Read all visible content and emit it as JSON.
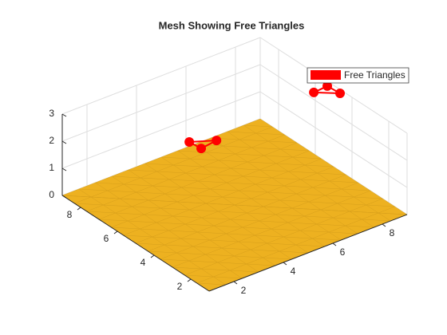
{
  "chart_data": {
    "type": "mesh3d",
    "title": "Mesh Showing Free Triangles",
    "xlim": [
      1,
      9
    ],
    "xticks": [
      2,
      4,
      6,
      8
    ],
    "ylim": [
      1,
      9
    ],
    "yticks": [
      2,
      4,
      6,
      8
    ],
    "zlim": [
      0,
      3
    ],
    "zticks": [
      0,
      1,
      2,
      3
    ],
    "grid": true,
    "surface_color": "#EDB120",
    "legend_position": "northeast",
    "series": [
      {
        "name": "Free Triangles",
        "color": "#FF0000",
        "triangles": [
          {
            "x": [
              4.19,
              4.24,
              4.94
            ],
            "y": [
              6.38,
              5.8,
              5.91
            ],
            "z": [
              2,
              2,
              2
            ]
          },
          {
            "x": [
              8.22,
              8.81,
              8.85
            ],
            "y": [
              5.03,
              5.09,
              4.45
            ],
            "z": [
              3,
              3,
              3
            ]
          }
        ]
      }
    ]
  }
}
